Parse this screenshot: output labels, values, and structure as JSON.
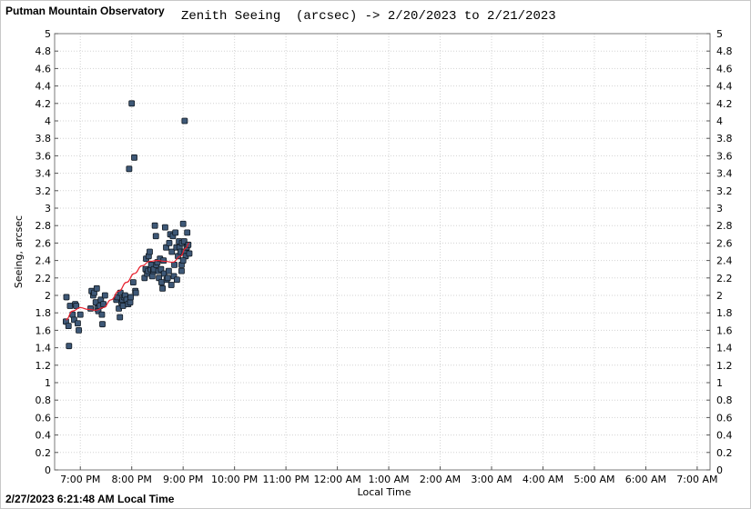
{
  "header": {
    "observatory": "Putman Mountain Observatory",
    "title": "Zenith Seeing  (arcsec) -> 2/20/2023 to 2/21/2023"
  },
  "footer": {
    "timestamp": "2/27/2023 6:21:48 AM Local Time"
  },
  "chart_data": {
    "type": "scatter",
    "title": "Zenith Seeing  (arcsec) -> 2/20/2023 to 2/21/2023",
    "xlabel": "Local Time",
    "ylabel": "Seeing, arcsec",
    "xlim": [
      18.5,
      31.25
    ],
    "ylim": [
      0,
      5
    ],
    "grid": true,
    "y_ticks": [
      "0",
      "0.2",
      "0.4",
      "0.6",
      "0.8",
      "1",
      "1.2",
      "1.4",
      "1.6",
      "1.8",
      "2",
      "2.2",
      "2.4",
      "2.6",
      "2.8",
      "3",
      "3.2",
      "3.4",
      "3.6",
      "3.8",
      "4",
      "4.2",
      "4.4",
      "4.6",
      "4.8",
      "5"
    ],
    "x_ticks": [
      {
        "value": 19,
        "label": "7:00 PM"
      },
      {
        "value": 20,
        "label": "8:00 PM"
      },
      {
        "value": 21,
        "label": "9:00 PM"
      },
      {
        "value": 22,
        "label": "10:00 PM"
      },
      {
        "value": 23,
        "label": "11:00 PM"
      },
      {
        "value": 24,
        "label": "12:00 AM"
      },
      {
        "value": 25,
        "label": "1:00 AM"
      },
      {
        "value": 26,
        "label": "2:00 AM"
      },
      {
        "value": 27,
        "label": "3:00 AM"
      },
      {
        "value": 28,
        "label": "4:00 AM"
      },
      {
        "value": 29,
        "label": "5:00 AM"
      },
      {
        "value": 30,
        "label": "6:00 AM"
      },
      {
        "value": 31,
        "label": "7:00 AM"
      }
    ],
    "points": [
      [
        18.72,
        1.7
      ],
      [
        18.73,
        1.98
      ],
      [
        18.77,
        1.65
      ],
      [
        18.78,
        1.42
      ],
      [
        18.8,
        1.88
      ],
      [
        18.85,
        1.78
      ],
      [
        18.88,
        1.72
      ],
      [
        18.9,
        1.9
      ],
      [
        18.92,
        1.88
      ],
      [
        18.95,
        1.68
      ],
      [
        18.97,
        1.6
      ],
      [
        19.0,
        1.78
      ],
      [
        19.2,
        1.85
      ],
      [
        19.22,
        2.05
      ],
      [
        19.25,
        2.0
      ],
      [
        19.27,
        2.03
      ],
      [
        19.3,
        1.92
      ],
      [
        19.32,
        2.08
      ],
      [
        19.33,
        1.85
      ],
      [
        19.35,
        1.82
      ],
      [
        19.38,
        1.88
      ],
      [
        19.4,
        1.95
      ],
      [
        19.42,
        1.78
      ],
      [
        19.43,
        1.67
      ],
      [
        19.45,
        1.9
      ],
      [
        19.48,
        2.0
      ],
      [
        19.7,
        1.95
      ],
      [
        19.72,
        1.98
      ],
      [
        19.75,
        1.85
      ],
      [
        19.77,
        1.75
      ],
      [
        19.78,
        2.03
      ],
      [
        19.8,
        1.92
      ],
      [
        19.82,
        1.95
      ],
      [
        19.83,
        1.88
      ],
      [
        19.85,
        1.98
      ],
      [
        19.87,
        2.0
      ],
      [
        19.9,
        1.95
      ],
      [
        19.93,
        1.9
      ],
      [
        19.95,
        3.45
      ],
      [
        19.97,
        1.92
      ],
      [
        19.98,
        1.98
      ],
      [
        20.0,
        4.2
      ],
      [
        20.03,
        2.15
      ],
      [
        20.05,
        3.58
      ],
      [
        20.07,
        2.05
      ],
      [
        20.08,
        2.03
      ],
      [
        20.25,
        2.2
      ],
      [
        20.27,
        2.3
      ],
      [
        20.28,
        2.42
      ],
      [
        20.3,
        2.25
      ],
      [
        20.32,
        2.28
      ],
      [
        20.33,
        2.45
      ],
      [
        20.35,
        2.5
      ],
      [
        20.37,
        2.3
      ],
      [
        20.38,
        2.35
      ],
      [
        20.4,
        2.22
      ],
      [
        20.42,
        2.28
      ],
      [
        20.43,
        2.3
      ],
      [
        20.45,
        2.8
      ],
      [
        20.47,
        2.68
      ],
      [
        20.48,
        2.35
      ],
      [
        20.5,
        2.38
      ],
      [
        20.52,
        2.28
      ],
      [
        20.53,
        2.2
      ],
      [
        20.55,
        2.42
      ],
      [
        20.57,
        2.3
      ],
      [
        20.58,
        2.15
      ],
      [
        20.6,
        2.08
      ],
      [
        20.62,
        2.4
      ],
      [
        20.63,
        2.25
      ],
      [
        20.65,
        2.78
      ],
      [
        20.67,
        2.55
      ],
      [
        20.68,
        2.18
      ],
      [
        20.7,
        2.2
      ],
      [
        20.72,
        2.28
      ],
      [
        20.73,
        2.6
      ],
      [
        20.75,
        2.7
      ],
      [
        20.77,
        2.12
      ],
      [
        20.78,
        2.5
      ],
      [
        20.8,
        2.68
      ],
      [
        20.82,
        2.22
      ],
      [
        20.83,
        2.35
      ],
      [
        20.85,
        2.72
      ],
      [
        20.87,
        2.55
      ],
      [
        20.88,
        2.18
      ],
      [
        20.9,
        2.45
      ],
      [
        20.92,
        2.62
      ],
      [
        20.93,
        2.55
      ],
      [
        20.95,
        2.5
      ],
      [
        20.97,
        2.35
      ],
      [
        20.98,
        2.6
      ],
      [
        21.0,
        2.82
      ],
      [
        21.02,
        2.62
      ],
      [
        21.03,
        2.5
      ],
      [
        21.05,
        2.45
      ],
      [
        21.07,
        2.55
      ],
      [
        21.08,
        2.72
      ],
      [
        21.1,
        2.58
      ],
      [
        21.12,
        2.48
      ],
      [
        21.03,
        4.0
      ],
      [
        20.97,
        2.28
      ],
      [
        21.0,
        2.4
      ]
    ],
    "trend": [
      [
        18.72,
        1.72
      ],
      [
        18.85,
        1.82
      ],
      [
        19.0,
        1.86
      ],
      [
        19.15,
        1.84
      ],
      [
        19.3,
        1.83
      ],
      [
        19.45,
        1.86
      ],
      [
        19.6,
        1.95
      ],
      [
        19.75,
        2.05
      ],
      [
        19.9,
        2.15
      ],
      [
        20.05,
        2.25
      ],
      [
        20.2,
        2.34
      ],
      [
        20.35,
        2.39
      ],
      [
        20.5,
        2.4
      ],
      [
        20.65,
        2.39
      ],
      [
        20.8,
        2.38
      ],
      [
        20.95,
        2.45
      ],
      [
        21.05,
        2.54
      ],
      [
        21.12,
        2.6
      ]
    ]
  },
  "colors": {
    "marker_fill": "#3e5877",
    "marker_stroke": "#101820",
    "trend": "#e8212e",
    "grid": "#d3d3d3"
  }
}
